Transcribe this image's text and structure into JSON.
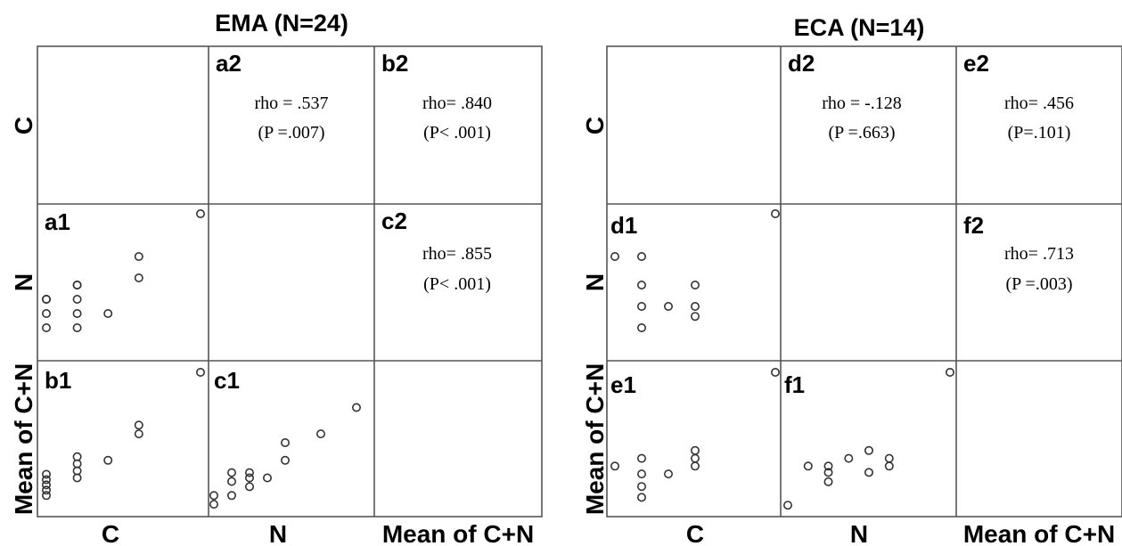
{
  "chart_data": [
    {
      "type": "scatter",
      "title": "EMA (N=24)",
      "variables": [
        "C",
        "N",
        "Mean of C+N"
      ],
      "cells": {
        "a2": {
          "rho": "rho = .537",
          "p": "(P =.007)"
        },
        "b2": {
          "rho": "rho= .840",
          "p": "(P< .001)"
        },
        "c2": {
          "rho": "rho= .855",
          "p": "(P< .001)"
        },
        "a1": {
          "xvar": "C",
          "yvar": "N",
          "points": [
            [
              1.0,
              3.0
            ],
            [
              1.0,
              4.0
            ],
            [
              1.0,
              5.0
            ],
            [
              1.0,
              5.0
            ],
            [
              2.0,
              3.0
            ],
            [
              2.0,
              4.0
            ],
            [
              2.0,
              5.0
            ],
            [
              2.0,
              6.0
            ],
            [
              2.0,
              6.0
            ],
            [
              3.0,
              4.0
            ],
            [
              4.0,
              6.5
            ],
            [
              4.0,
              8.0
            ],
            [
              6.0,
              11.0
            ]
          ]
        },
        "b1": {
          "xvar": "C",
          "yvar": "Mean of C+N",
          "points": [
            [
              1.0,
              2.0
            ],
            [
              1.0,
              2.3
            ],
            [
              1.0,
              2.6
            ],
            [
              1.0,
              2.9
            ],
            [
              1.0,
              3.2
            ],
            [
              2.0,
              3.0
            ],
            [
              2.0,
              3.4
            ],
            [
              2.0,
              3.8
            ],
            [
              2.0,
              4.2
            ],
            [
              3.0,
              4.0
            ],
            [
              4.0,
              5.5
            ],
            [
              4.0,
              6.0
            ],
            [
              6.0,
              9.0
            ]
          ]
        },
        "c1": {
          "xvar": "N",
          "yvar": "Mean of C+N",
          "points": [
            [
              1.0,
              1.5
            ],
            [
              1.0,
              2.0
            ],
            [
              2.0,
              2.0
            ],
            [
              2.0,
              2.8
            ],
            [
              2.0,
              3.3
            ],
            [
              3.0,
              2.5
            ],
            [
              3.0,
              3.0
            ],
            [
              3.0,
              3.3
            ],
            [
              4.0,
              3.0
            ],
            [
              5.0,
              4.0
            ],
            [
              5.0,
              5.0
            ],
            [
              7.0,
              5.5
            ],
            [
              9.0,
              7.0
            ]
          ]
        }
      }
    },
    {
      "type": "scatter",
      "title": "ECA (N=14)",
      "variables": [
        "C",
        "N",
        "Mean of C+N"
      ],
      "cells": {
        "d2": {
          "rho": "rho = -.128",
          "p": "(P =.663)"
        },
        "e2": {
          "rho": "rho= .456",
          "p": "(P=.101)"
        },
        "f2": {
          "rho": "rho= .713",
          "p": "(P =.003)"
        },
        "d1": {
          "xvar": "C",
          "yvar": "N",
          "points": [
            [
              1.0,
              8.0
            ],
            [
              2.0,
              8.0
            ],
            [
              2.0,
              6.0
            ],
            [
              2.0,
              4.5
            ],
            [
              2.0,
              3.0
            ],
            [
              3.0,
              4.5
            ],
            [
              4.0,
              6.0
            ],
            [
              4.0,
              4.5
            ],
            [
              4.0,
              3.8
            ],
            [
              7.0,
              11.0
            ]
          ]
        },
        "e1": {
          "xvar": "C",
          "yvar": "Mean of C+N",
          "points": [
            [
              1.0,
              4.0
            ],
            [
              2.0,
              2.0
            ],
            [
              2.0,
              2.7
            ],
            [
              2.0,
              3.5
            ],
            [
              2.0,
              4.5
            ],
            [
              3.0,
              3.5
            ],
            [
              4.0,
              4.0
            ],
            [
              4.0,
              4.5
            ],
            [
              4.0,
              5.0
            ],
            [
              7.0,
              10.0
            ]
          ]
        },
        "f1": {
          "xvar": "N",
          "yvar": "Mean of C+N",
          "points": [
            [
              1.0,
              1.5
            ],
            [
              2.0,
              4.0
            ],
            [
              3.0,
              3.0
            ],
            [
              3.0,
              3.6
            ],
            [
              3.0,
              4.0
            ],
            [
              4.0,
              4.5
            ],
            [
              5.0,
              3.6
            ],
            [
              5.0,
              5.0
            ],
            [
              6.0,
              4.0
            ],
            [
              6.0,
              4.5
            ],
            [
              9.0,
              10.0
            ]
          ]
        }
      }
    }
  ]
}
